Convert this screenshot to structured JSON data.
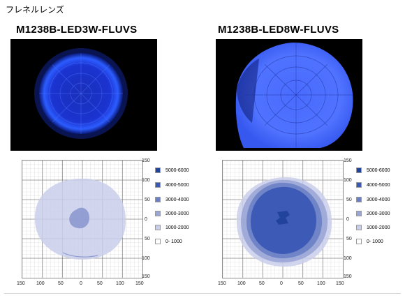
{
  "header": {
    "label": "フレネルレンズ"
  },
  "panels": [
    {
      "title": "M1238B-LED3W-FLUVS",
      "legend": [
        {
          "label": "5000-6000",
          "color": "#22439b"
        },
        {
          "label": "4000-5000",
          "color": "#3a59b5"
        },
        {
          "label": "3000-4000",
          "color": "#6a7fc5"
        },
        {
          "label": "2000-3000",
          "color": "#9ba6d6"
        },
        {
          "label": "1000-2000",
          "color": "#c9ceea"
        },
        {
          "label": "0- 1000",
          "color": "#ffffff"
        }
      ],
      "y_ticks": [
        "150",
        "100",
        "50",
        "0",
        "50",
        "100",
        "150"
      ],
      "x_ticks": [
        "150",
        "100",
        "50",
        "0",
        "50",
        "100",
        "150"
      ]
    },
    {
      "title": "M1238B-LED8W-FLUVS",
      "legend": [
        {
          "label": "5000-6000",
          "color": "#22439b"
        },
        {
          "label": "4000-5000",
          "color": "#3a59b5"
        },
        {
          "label": "3000-4000",
          "color": "#6a7fc5"
        },
        {
          "label": "2000-3000",
          "color": "#9ba6d6"
        },
        {
          "label": "1000-2000",
          "color": "#c9ceea"
        },
        {
          "label": "0- 1000",
          "color": "#ffffff"
        }
      ],
      "y_ticks": [
        "150",
        "100",
        "50",
        "0",
        "50",
        "100",
        "150"
      ],
      "x_ticks": [
        "150",
        "100",
        "50",
        "0",
        "50",
        "100",
        "150"
      ]
    }
  ]
}
